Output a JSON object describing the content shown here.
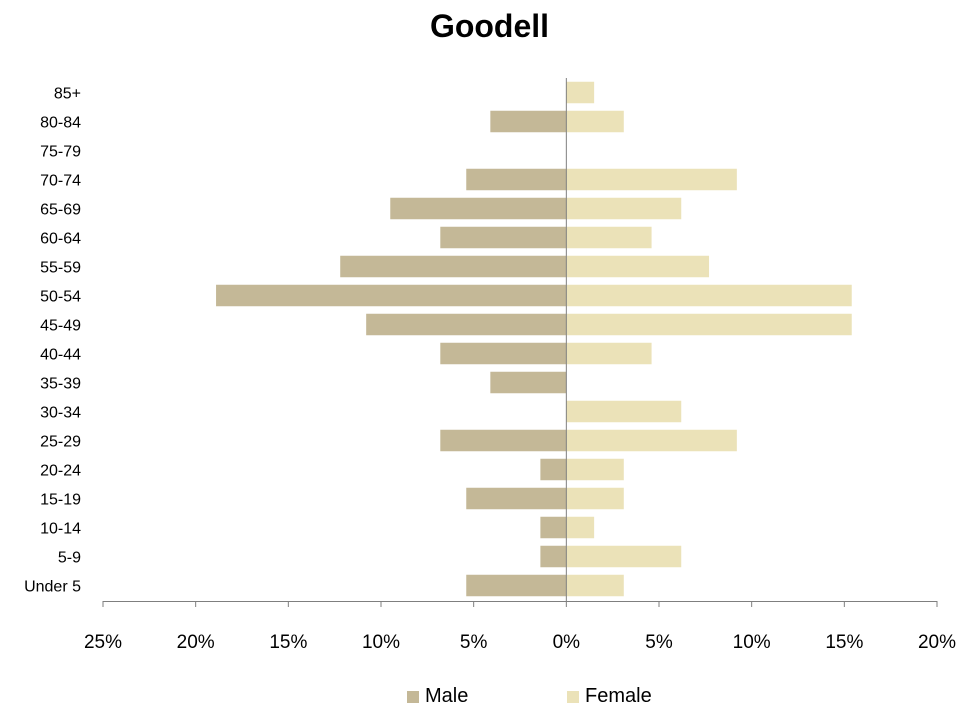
{
  "chart_data": {
    "type": "bar",
    "orientation": "horizontal",
    "title": "Goodell",
    "categories": [
      "Under 5",
      "5-9",
      "10-14",
      "15-19",
      "20-24",
      "25-29",
      "30-34",
      "35-39",
      "40-44",
      "45-49",
      "50-54",
      "55-59",
      "60-64",
      "65-69",
      "70-74",
      "75-79",
      "80-84",
      "85+"
    ],
    "series": [
      {
        "name": "Male",
        "color": "#c4b897",
        "values": [
          -5.4,
          -1.4,
          -1.4,
          -5.4,
          -1.4,
          -6.8,
          0,
          -4.1,
          -6.8,
          -10.8,
          -18.9,
          -12.2,
          -6.8,
          -9.5,
          -5.4,
          0,
          -4.1,
          0
        ]
      },
      {
        "name": "Female",
        "color": "#ebe2b8",
        "values": [
          3.1,
          6.2,
          1.5,
          3.1,
          3.1,
          9.2,
          6.2,
          0,
          4.6,
          15.4,
          15.4,
          7.7,
          4.6,
          6.2,
          9.2,
          0,
          3.1,
          1.5
        ]
      }
    ],
    "xlim": [
      -25,
      20
    ],
    "xticks": [
      -25,
      -20,
      -15,
      -10,
      -5,
      0,
      5,
      10,
      15,
      20
    ],
    "xtick_labels": [
      "25%",
      "20%",
      "15%",
      "10%",
      "5%",
      "0%",
      "5%",
      "10%",
      "15%",
      "20%"
    ],
    "xlabel": "",
    "ylabel": "",
    "grid": false,
    "legend_position": "bottom"
  }
}
